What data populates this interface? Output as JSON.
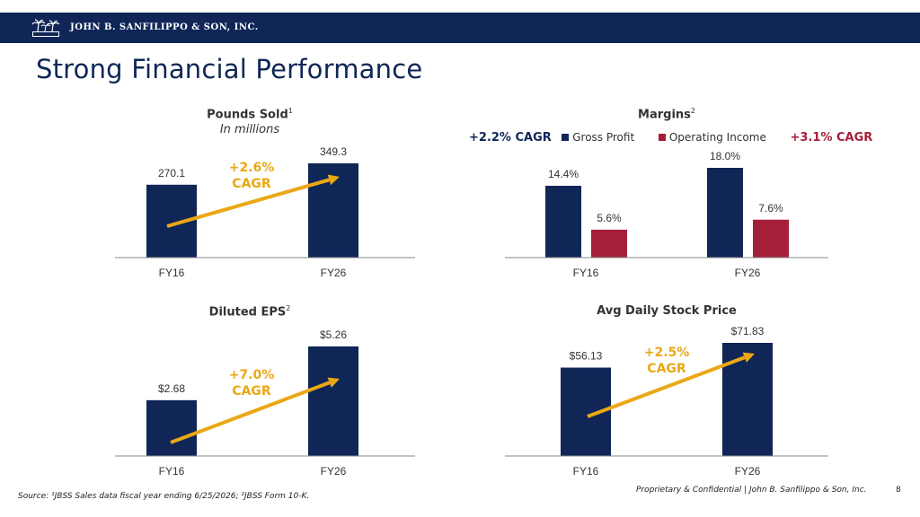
{
  "header": {
    "company": "JOHN B. SANFILIPPO & SON, INC.",
    "brand_color": "#0f2657"
  },
  "title": "Strong Financial Performance",
  "colors": {
    "navy": "#0f2657",
    "red": "#a51f3a",
    "gold": "#eba715"
  },
  "chart_data": [
    {
      "type": "bar",
      "title": "Pounds Sold",
      "title_sup": "1",
      "subtitle": "In millions",
      "categories": [
        "FY16",
        "FY26"
      ],
      "values": [
        270.1,
        349.3
      ],
      "labels": [
        "270.1",
        "349.3"
      ],
      "annotation": "+2.6% CAGR",
      "annotation_lines": [
        "+2.6%",
        "CAGR"
      ]
    },
    {
      "type": "bar",
      "title": "Margins",
      "title_sup": "2",
      "categories": [
        "FY16",
        "FY26"
      ],
      "series": [
        {
          "name": "Gross Profit",
          "values": [
            14.4,
            18.0
          ],
          "labels": [
            "14.4%",
            "18.0%"
          ],
          "color": "#0f2657",
          "cagr": "+2.2% CAGR"
        },
        {
          "name": "Operating Income",
          "values": [
            5.6,
            7.6
          ],
          "labels": [
            "5.6%",
            "7.6%"
          ],
          "color": "#a51f3a",
          "cagr": "+3.1% CAGR"
        }
      ]
    },
    {
      "type": "bar",
      "title": "Diluted EPS",
      "title_sup": "2",
      "categories": [
        "FY16",
        "FY26"
      ],
      "values": [
        2.68,
        5.26
      ],
      "labels": [
        "$2.68",
        "$5.26"
      ],
      "annotation": "+7.0% CAGR",
      "annotation_lines": [
        "+7.0%",
        "CAGR"
      ]
    },
    {
      "type": "bar",
      "title": "Avg Daily Stock Price",
      "categories": [
        "FY16",
        "FY26"
      ],
      "values": [
        56.13,
        71.83
      ],
      "labels": [
        "$56.13",
        "$71.83"
      ],
      "annotation": "+2.5% CAGR",
      "annotation_lines": [
        "+2.5%",
        "CAGR"
      ]
    }
  ],
  "footer": {
    "source": "Source: ¹JBSS Sales data fiscal year ending 6/25/2026; ²JBSS Form 10-K.",
    "confidential": "Proprietary & Confidential | John B. Sanfilippo & Son, Inc.",
    "page": "8"
  }
}
